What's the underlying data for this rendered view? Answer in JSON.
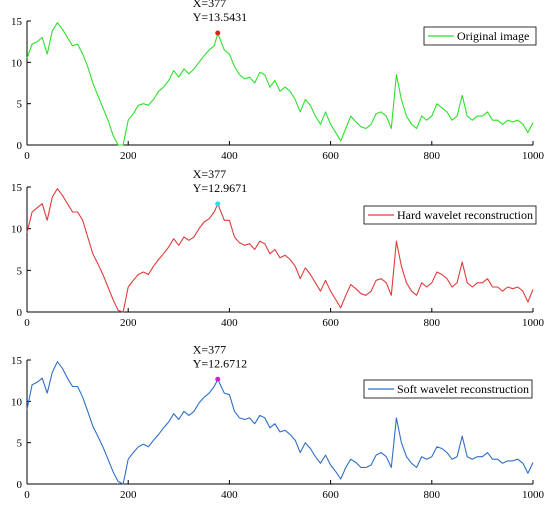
{
  "chart_data": [
    {
      "type": "line",
      "title": "",
      "xlabel": "",
      "ylabel": "",
      "xlim": [
        0,
        1000
      ],
      "ylim": [
        0,
        15
      ],
      "xticks": [
        0,
        200,
        400,
        600,
        800,
        1000
      ],
      "yticks": [
        0,
        5,
        10,
        15
      ],
      "grid": false,
      "legend_position": "top-right",
      "series": [
        {
          "name": "Original image",
          "color": "#2ee02e",
          "x": [
            0,
            10,
            20,
            30,
            40,
            50,
            60,
            70,
            80,
            90,
            100,
            110,
            120,
            130,
            140,
            150,
            160,
            170,
            180,
            190,
            195,
            200,
            210,
            220,
            230,
            240,
            250,
            260,
            270,
            280,
            290,
            300,
            310,
            320,
            330,
            340,
            350,
            360,
            370,
            377,
            390,
            400,
            410,
            420,
            430,
            440,
            450,
            460,
            470,
            480,
            490,
            500,
            510,
            520,
            530,
            540,
            550,
            560,
            570,
            580,
            590,
            600,
            610,
            620,
            630,
            640,
            650,
            660,
            670,
            680,
            690,
            700,
            710,
            720,
            730,
            740,
            750,
            760,
            770,
            780,
            790,
            800,
            810,
            820,
            830,
            840,
            850,
            860,
            870,
            880,
            890,
            900,
            910,
            920,
            930,
            940,
            950,
            960,
            970,
            980,
            990,
            1000
          ],
          "values": [
            10.5,
            12.2,
            12.5,
            13.0,
            11.0,
            13.8,
            14.8,
            14.0,
            13.0,
            12.0,
            12.2,
            11.0,
            9.5,
            7.5,
            6.0,
            4.5,
            3.0,
            1.2,
            0.0,
            0.0,
            1.5,
            3.0,
            3.8,
            4.8,
            5.0,
            4.8,
            5.5,
            6.5,
            7.0,
            7.8,
            9.0,
            8.2,
            9.2,
            8.6,
            9.2,
            10.0,
            10.8,
            11.5,
            12.0,
            13.5,
            11.5,
            11.0,
            9.5,
            8.5,
            8.0,
            8.2,
            7.5,
            8.8,
            8.5,
            7.0,
            7.8,
            6.5,
            7.0,
            6.5,
            5.5,
            4.0,
            5.5,
            4.8,
            3.5,
            2.5,
            4.0,
            2.5,
            1.5,
            0.5,
            2.0,
            3.5,
            2.8,
            2.2,
            2.0,
            2.5,
            3.8,
            4.0,
            3.5,
            2.0,
            8.5,
            5.5,
            3.5,
            2.5,
            2.0,
            3.5,
            3.0,
            3.5,
            5.0,
            4.5,
            4.0,
            3.0,
            3.5,
            6.0,
            3.5,
            3.0,
            3.5,
            3.5,
            4.0,
            3.0,
            3.0,
            2.5,
            3.0,
            2.8,
            3.0,
            2.5,
            1.5,
            2.7
          ]
        }
      ],
      "annotation": {
        "x": 377,
        "y": 13.5431,
        "label_x": "X=377",
        "label_y": "Y=13.5431",
        "marker_color": "#e02020"
      }
    },
    {
      "type": "line",
      "title": "",
      "xlabel": "",
      "ylabel": "",
      "xlim": [
        0,
        1000
      ],
      "ylim": [
        0,
        15
      ],
      "xticks": [
        0,
        200,
        400,
        600,
        800,
        1000
      ],
      "yticks": [
        0,
        5,
        10,
        15
      ],
      "grid": false,
      "legend_position": "top-right",
      "series": [
        {
          "name": "Hard wavelet reconstruction",
          "color": "#e03c3c",
          "x": [
            0,
            10,
            20,
            30,
            40,
            50,
            60,
            70,
            80,
            90,
            100,
            110,
            120,
            130,
            140,
            150,
            160,
            170,
            180,
            190,
            195,
            200,
            210,
            220,
            230,
            240,
            250,
            260,
            270,
            280,
            290,
            300,
            310,
            320,
            330,
            340,
            350,
            360,
            370,
            377,
            390,
            400,
            410,
            420,
            430,
            440,
            450,
            460,
            470,
            480,
            490,
            500,
            510,
            520,
            530,
            540,
            550,
            560,
            570,
            580,
            590,
            600,
            610,
            620,
            630,
            640,
            650,
            660,
            670,
            680,
            690,
            700,
            710,
            720,
            730,
            740,
            750,
            760,
            770,
            780,
            790,
            800,
            810,
            820,
            830,
            840,
            850,
            860,
            870,
            880,
            890,
            900,
            910,
            920,
            930,
            940,
            950,
            960,
            970,
            980,
            990,
            1000
          ],
          "values": [
            9.5,
            12.0,
            12.5,
            13.0,
            11.0,
            13.8,
            14.8,
            14.0,
            13.0,
            12.0,
            12.0,
            11.0,
            9.0,
            7.0,
            5.8,
            4.5,
            3.0,
            1.5,
            0.2,
            0.0,
            1.5,
            3.0,
            3.8,
            4.5,
            4.8,
            4.5,
            5.5,
            6.3,
            7.0,
            7.8,
            8.8,
            8.0,
            9.0,
            8.6,
            9.0,
            10.0,
            10.8,
            11.2,
            12.0,
            12.97,
            11.0,
            11.0,
            9.0,
            8.3,
            8.0,
            8.2,
            7.5,
            8.5,
            8.2,
            7.0,
            7.5,
            6.5,
            6.8,
            6.3,
            5.5,
            4.0,
            5.3,
            4.5,
            3.5,
            2.5,
            3.8,
            2.5,
            1.5,
            0.5,
            2.0,
            3.3,
            2.8,
            2.2,
            2.0,
            2.5,
            3.8,
            4.0,
            3.5,
            2.0,
            8.5,
            5.5,
            3.5,
            2.5,
            2.0,
            3.5,
            3.0,
            3.5,
            4.8,
            4.5,
            4.0,
            3.0,
            3.5,
            6.0,
            3.5,
            3.0,
            3.5,
            3.5,
            4.0,
            3.0,
            3.0,
            2.5,
            3.0,
            2.8,
            3.0,
            2.5,
            1.2,
            2.7
          ]
        }
      ],
      "annotation": {
        "x": 377,
        "y": 12.9671,
        "label_x": "X=377",
        "label_y": "Y=12.9671",
        "marker_color": "#30d8e8"
      }
    },
    {
      "type": "line",
      "title": "",
      "xlabel": "",
      "ylabel": "",
      "xlim": [
        0,
        1000
      ],
      "ylim": [
        0,
        15
      ],
      "xticks": [
        0,
        200,
        400,
        600,
        800,
        1000
      ],
      "yticks": [
        0,
        5,
        10,
        15
      ],
      "grid": false,
      "legend_position": "top-right",
      "series": [
        {
          "name": "Soft wavelet reconstruction",
          "color": "#2f6fc8",
          "x": [
            0,
            10,
            20,
            30,
            40,
            50,
            60,
            70,
            80,
            90,
            100,
            110,
            120,
            130,
            140,
            150,
            160,
            170,
            180,
            190,
            195,
            200,
            210,
            220,
            230,
            240,
            250,
            260,
            270,
            280,
            290,
            300,
            310,
            320,
            330,
            340,
            350,
            360,
            370,
            377,
            390,
            400,
            410,
            420,
            430,
            440,
            450,
            460,
            470,
            480,
            490,
            500,
            510,
            520,
            530,
            540,
            550,
            560,
            570,
            580,
            590,
            600,
            610,
            620,
            630,
            640,
            650,
            660,
            670,
            680,
            690,
            700,
            710,
            720,
            730,
            740,
            750,
            760,
            770,
            780,
            790,
            800,
            810,
            820,
            830,
            840,
            850,
            860,
            870,
            880,
            890,
            900,
            910,
            920,
            930,
            940,
            950,
            960,
            970,
            980,
            990,
            1000
          ],
          "values": [
            9.0,
            12.0,
            12.3,
            12.8,
            11.0,
            13.5,
            14.8,
            14.0,
            12.8,
            11.8,
            11.8,
            10.5,
            8.8,
            7.0,
            5.8,
            4.5,
            3.0,
            1.5,
            0.3,
            0.0,
            1.5,
            3.0,
            3.8,
            4.5,
            4.8,
            4.5,
            5.3,
            6.0,
            6.8,
            7.5,
            8.5,
            7.8,
            8.8,
            8.3,
            8.8,
            9.8,
            10.5,
            11.0,
            11.8,
            12.67,
            11.0,
            10.8,
            8.8,
            8.0,
            7.8,
            8.0,
            7.3,
            8.3,
            8.0,
            6.8,
            7.3,
            6.3,
            6.5,
            6.0,
            5.3,
            3.8,
            5.0,
            4.3,
            3.3,
            2.5,
            3.5,
            2.3,
            1.5,
            0.6,
            2.0,
            3.0,
            2.6,
            2.0,
            2.0,
            2.3,
            3.5,
            3.8,
            3.3,
            2.0,
            8.0,
            5.0,
            3.3,
            2.5,
            2.0,
            3.3,
            3.0,
            3.3,
            4.5,
            4.3,
            3.8,
            3.0,
            3.3,
            5.8,
            3.3,
            3.0,
            3.3,
            3.3,
            3.8,
            3.0,
            3.0,
            2.5,
            2.8,
            2.8,
            3.0,
            2.5,
            1.3,
            2.6
          ]
        }
      ],
      "annotation": {
        "x": 377,
        "y": 12.6712,
        "label_x": "X=377",
        "label_y": "Y=12.6712",
        "marker_color": "#d020d0"
      }
    }
  ]
}
